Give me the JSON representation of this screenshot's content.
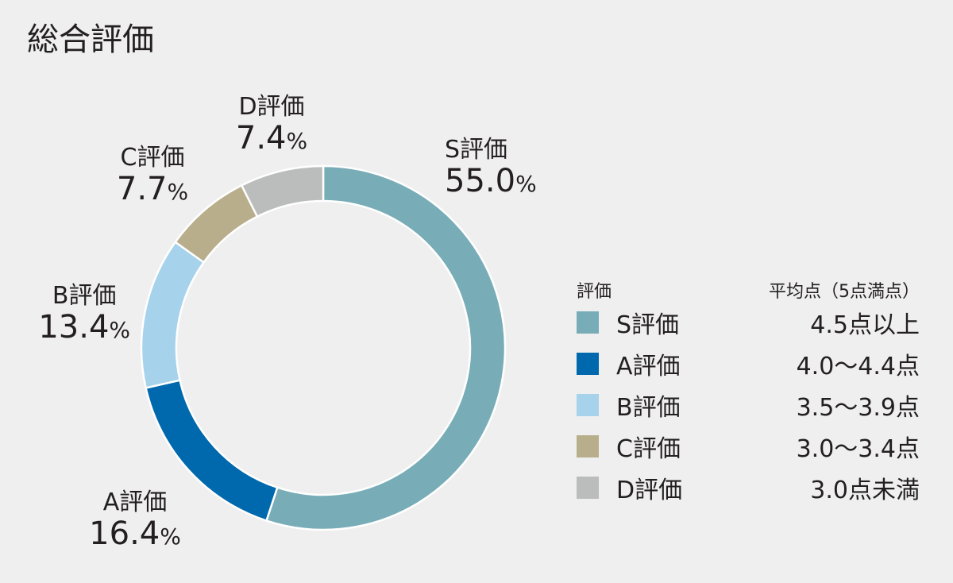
{
  "title": "総合評価",
  "chart_data": {
    "type": "pie",
    "donut": true,
    "categories": [
      "S評価",
      "A評価",
      "B評価",
      "C評価",
      "D評価"
    ],
    "values": [
      55.0,
      16.4,
      13.4,
      7.7,
      7.4
    ],
    "value_labels": [
      "55.0",
      "16.4",
      "13.4",
      "7.7",
      "7.4"
    ],
    "unit": "%",
    "colors": [
      "#78adb7",
      "#0068ac",
      "#a6d2ec",
      "#b8ae8c",
      "#bbbcbc"
    ]
  },
  "legend": {
    "header_rating": "評価",
    "header_score": "平均点（5点満点）",
    "rows": [
      {
        "name": "S評価",
        "range": "4.5点以上"
      },
      {
        "name": "A評価",
        "range": "4.0〜4.4点"
      },
      {
        "name": "B評価",
        "range": "3.5〜3.9点"
      },
      {
        "name": "C評価",
        "range": "3.0〜3.4点"
      },
      {
        "name": "D評価",
        "range": "3.0点未満"
      }
    ]
  }
}
